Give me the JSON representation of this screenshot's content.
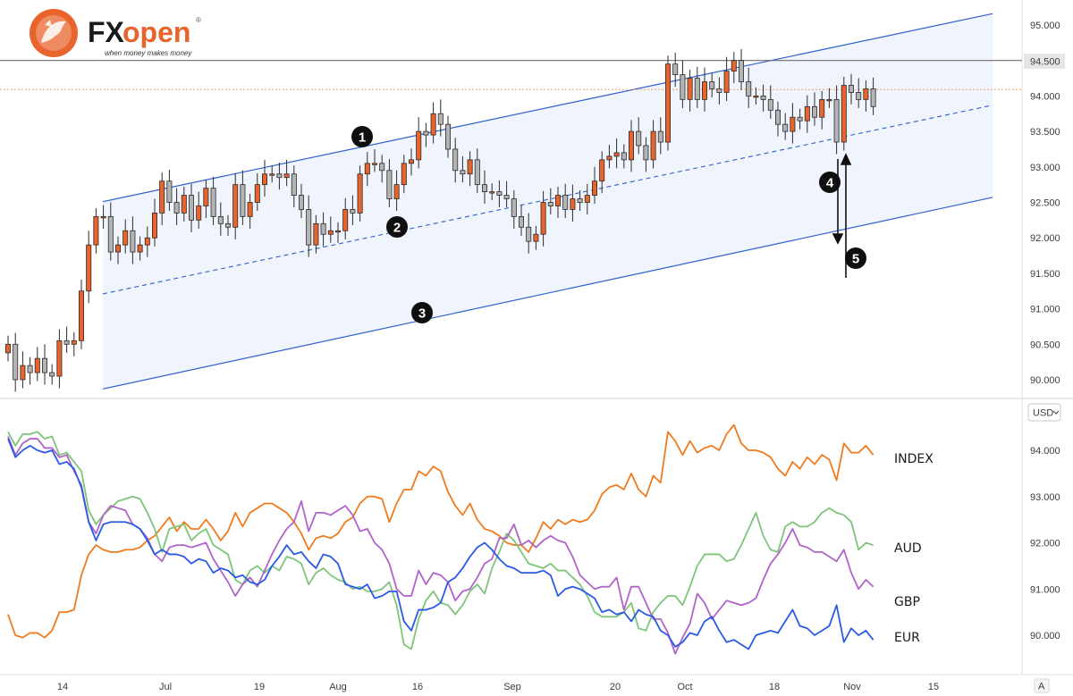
{
  "logo": {
    "brand_fx": "FX",
    "brand_open": "open",
    "tagline": "when money makes money",
    "mark": "®"
  },
  "currency_selector": {
    "label": "USD",
    "chevron_icon": "chevron-down-icon"
  },
  "corner_button": {
    "label": "A"
  },
  "colors": {
    "up": "#e8642c",
    "down": "#b4b4b4",
    "channel": "#2f5fd0",
    "channel_fill": "#eef3fd",
    "index": "#f07b1e",
    "aud": "#7fc47a",
    "gbp": "#b063c9",
    "eur": "#2a59e6",
    "resistance": "#6e6e6e",
    "last_price": "#f0a060"
  },
  "chart_data": [
    {
      "type": "candlestick",
      "title": "",
      "yticks": [
        "95.000",
        "94.500",
        "94.000",
        "93.500",
        "93.000",
        "92.500",
        "92.000",
        "91.500",
        "91.000",
        "90.500",
        "90.000"
      ],
      "ylim": [
        89.86,
        95.23
      ],
      "resistance_level": {
        "value": 94.5,
        "label": "94.500"
      },
      "last_price_level": 94.09,
      "channel": {
        "upper": {
          "start": 92.51,
          "end": 95.16
        },
        "middle": {
          "start": 91.21,
          "end": 93.87
        },
        "lower": {
          "start": 89.87,
          "end": 92.57
        }
      },
      "annotations": [
        {
          "label": "1",
          "role": "upper channel line"
        },
        {
          "label": "2",
          "role": "channel midline"
        },
        {
          "label": "3",
          "role": "lower channel line"
        },
        {
          "label": "4",
          "role": "down arrow"
        },
        {
          "label": "5",
          "role": "up arrow"
        }
      ],
      "closes": [
        90.5,
        90.0,
        90.2,
        90.1,
        90.3,
        90.1,
        90.05,
        90.55,
        90.5,
        90.55,
        91.25,
        91.9,
        92.3,
        92.3,
        91.8,
        91.9,
        92.1,
        91.8,
        91.9,
        92.0,
        92.35,
        92.8,
        92.5,
        92.35,
        92.6,
        92.25,
        92.45,
        92.7,
        92.3,
        92.2,
        92.15,
        92.75,
        92.3,
        92.5,
        92.75,
        92.9,
        92.9,
        92.85,
        92.9,
        92.6,
        92.4,
        91.9,
        92.2,
        92.05,
        92.1,
        92.1,
        92.4,
        92.35,
        92.9,
        93.05,
        93.05,
        92.95,
        92.55,
        92.75,
        93.05,
        93.1,
        93.5,
        93.45,
        93.75,
        93.6,
        93.25,
        92.95,
        92.9,
        93.1,
        92.75,
        92.65,
        92.65,
        92.6,
        92.55,
        92.3,
        92.15,
        91.95,
        92.05,
        92.5,
        92.45,
        92.6,
        92.4,
        92.55,
        92.5,
        92.6,
        92.8,
        93.1,
        93.15,
        93.2,
        93.1,
        93.5,
        93.3,
        93.1,
        93.5,
        93.35,
        94.45,
        94.3,
        93.95,
        94.25,
        93.95,
        94.2,
        94.1,
        94.05,
        94.35,
        94.5,
        94.2,
        94.0,
        94.0,
        93.95,
        93.8,
        93.6,
        93.5,
        93.7,
        93.65,
        93.85,
        93.7,
        93.95,
        93.95,
        93.35,
        94.15,
        94.05,
        93.95,
        94.1,
        93.85
      ],
      "x_ticks": [
        "14",
        "Jul",
        "19",
        "Aug",
        "16",
        "Sep",
        "20",
        "Oct",
        "18",
        "Nov",
        "15"
      ]
    },
    {
      "type": "line",
      "yticks": [
        "94.000",
        "93.000",
        "92.000",
        "91.000",
        "90.000"
      ],
      "ylim": [
        89.3,
        94.85
      ],
      "series": [
        {
          "name": "INDEX",
          "color_key": "index",
          "values": [
            90.45,
            90.0,
            89.95,
            90.05,
            90.05,
            89.95,
            90.1,
            90.5,
            90.5,
            90.55,
            91.3,
            91.75,
            91.95,
            91.85,
            91.8,
            91.8,
            91.85,
            91.85,
            91.9,
            92.05,
            92.15,
            92.35,
            92.55,
            92.25,
            92.45,
            92.3,
            92.3,
            92.5,
            92.3,
            92.05,
            92.25,
            92.65,
            92.35,
            92.65,
            92.75,
            92.85,
            92.85,
            92.75,
            92.65,
            92.45,
            92.2,
            91.85,
            92.1,
            92.15,
            92.1,
            92.2,
            92.45,
            92.55,
            92.85,
            93.0,
            93.0,
            92.95,
            92.45,
            92.85,
            93.15,
            93.15,
            93.55,
            93.45,
            93.65,
            93.55,
            93.1,
            92.8,
            92.6,
            92.85,
            92.5,
            92.3,
            92.25,
            92.15,
            92.0,
            91.95,
            91.95,
            91.8,
            92.1,
            92.45,
            92.3,
            92.5,
            92.4,
            92.5,
            92.45,
            92.5,
            92.7,
            93.05,
            93.2,
            93.25,
            93.15,
            93.5,
            93.15,
            93.0,
            93.45,
            93.3,
            94.4,
            94.2,
            93.9,
            94.2,
            93.95,
            94.05,
            94.1,
            94.0,
            94.35,
            94.55,
            94.15,
            94.0,
            94.0,
            93.95,
            93.85,
            93.6,
            93.45,
            93.75,
            93.6,
            93.85,
            93.7,
            93.9,
            93.8,
            93.35,
            94.15,
            93.95,
            93.95,
            94.1,
            93.9
          ]
        },
        {
          "name": "AUD",
          "color_key": "aud",
          "values": [
            94.4,
            94.1,
            94.35,
            94.35,
            94.4,
            94.25,
            94.3,
            93.9,
            93.95,
            93.75,
            93.55,
            92.7,
            92.4,
            92.6,
            92.75,
            92.9,
            92.95,
            93.0,
            92.95,
            92.65,
            92.3,
            91.8,
            92.3,
            92.35,
            92.4,
            92.05,
            92.2,
            92.3,
            91.95,
            91.85,
            91.75,
            91.2,
            91.1,
            91.4,
            91.5,
            91.35,
            91.5,
            91.4,
            91.7,
            91.65,
            91.55,
            91.1,
            91.35,
            91.45,
            91.3,
            91.2,
            91.15,
            91.0,
            91.05,
            90.95,
            90.95,
            91.0,
            91.15,
            90.65,
            89.8,
            89.7,
            90.35,
            90.75,
            90.95,
            90.7,
            90.65,
            90.45,
            90.65,
            90.95,
            91.1,
            90.9,
            91.45,
            91.8,
            92.2,
            92.05,
            91.8,
            91.55,
            91.5,
            91.45,
            91.55,
            91.4,
            91.4,
            91.25,
            91.1,
            90.85,
            90.5,
            90.4,
            90.4,
            90.4,
            90.5,
            90.7,
            90.15,
            90.1,
            90.5,
            90.7,
            90.85,
            90.85,
            90.65,
            91.05,
            91.5,
            91.75,
            91.75,
            91.75,
            91.6,
            91.65,
            91.95,
            92.3,
            92.65,
            92.15,
            91.85,
            91.8,
            92.35,
            92.45,
            92.35,
            92.35,
            92.45,
            92.65,
            92.75,
            92.65,
            92.6,
            92.45,
            91.85,
            92.0,
            91.95
          ]
        },
        {
          "name": "GBP",
          "color_key": "gbp",
          "values": [
            94.3,
            93.9,
            94.15,
            94.25,
            94.25,
            94.05,
            94.05,
            93.85,
            93.9,
            93.55,
            93.25,
            92.45,
            92.2,
            92.6,
            92.8,
            92.75,
            92.7,
            92.4,
            92.3,
            92.1,
            91.75,
            91.6,
            91.9,
            91.95,
            91.95,
            91.9,
            91.95,
            92.0,
            91.65,
            91.4,
            91.15,
            90.85,
            91.1,
            91.25,
            91.05,
            91.4,
            91.75,
            92.05,
            92.3,
            92.45,
            92.9,
            92.25,
            92.65,
            92.65,
            92.6,
            92.7,
            92.8,
            92.6,
            92.25,
            92.3,
            92.0,
            91.85,
            91.55,
            91.0,
            90.85,
            90.85,
            91.4,
            91.1,
            91.35,
            91.3,
            91.15,
            90.75,
            90.95,
            91.0,
            91.25,
            91.55,
            91.65,
            92.1,
            92.1,
            92.4,
            91.95,
            92.05,
            91.9,
            92.05,
            92.15,
            92.05,
            92.0,
            91.7,
            91.3,
            91.15,
            91.0,
            91.05,
            91.05,
            91.25,
            90.55,
            91.05,
            91.05,
            90.7,
            90.35,
            90.35,
            90.05,
            89.6,
            89.95,
            90.25,
            90.9,
            90.7,
            90.35,
            90.55,
            90.75,
            90.7,
            90.65,
            90.7,
            90.8,
            91.2,
            91.55,
            91.75,
            92.0,
            92.3,
            91.95,
            91.9,
            91.8,
            91.8,
            91.7,
            91.6,
            91.85,
            91.35,
            91.0,
            91.2,
            91.05
          ]
        },
        {
          "name": "EUR",
          "color_key": "eur",
          "values": [
            94.25,
            93.85,
            94.0,
            94.1,
            94.0,
            93.95,
            94.0,
            93.7,
            93.75,
            93.6,
            93.2,
            92.45,
            92.05,
            92.4,
            92.45,
            92.45,
            92.45,
            92.4,
            92.3,
            92.05,
            91.75,
            91.85,
            91.75,
            91.75,
            91.7,
            91.55,
            91.65,
            91.6,
            91.35,
            91.45,
            91.4,
            91.25,
            91.3,
            91.15,
            91.1,
            91.2,
            91.5,
            91.7,
            91.95,
            91.75,
            91.8,
            91.6,
            91.45,
            91.75,
            91.7,
            91.55,
            91.1,
            91.05,
            91.0,
            91.1,
            90.8,
            90.85,
            90.95,
            90.95,
            90.3,
            90.1,
            90.55,
            90.55,
            90.6,
            90.7,
            91.15,
            91.25,
            91.45,
            91.7,
            91.9,
            92.0,
            91.85,
            91.65,
            91.5,
            91.45,
            91.35,
            91.35,
            91.35,
            91.4,
            91.3,
            90.85,
            91.0,
            91.05,
            91.0,
            90.9,
            90.8,
            90.5,
            90.55,
            90.45,
            90.5,
            90.3,
            90.55,
            90.45,
            90.4,
            90.1,
            90.0,
            89.75,
            89.85,
            90.05,
            90.0,
            90.3,
            90.4,
            90.1,
            89.85,
            89.9,
            89.8,
            89.7,
            90.0,
            90.05,
            90.1,
            90.05,
            90.3,
            90.55,
            90.2,
            90.15,
            90.0,
            90.1,
            90.2,
            90.65,
            89.85,
            90.15,
            90.0,
            90.1,
            89.9
          ]
        }
      ],
      "x_ticks": [
        "14",
        "Jul",
        "19",
        "Aug",
        "16",
        "Sep",
        "20",
        "Oct",
        "18",
        "Nov",
        "15"
      ]
    }
  ]
}
